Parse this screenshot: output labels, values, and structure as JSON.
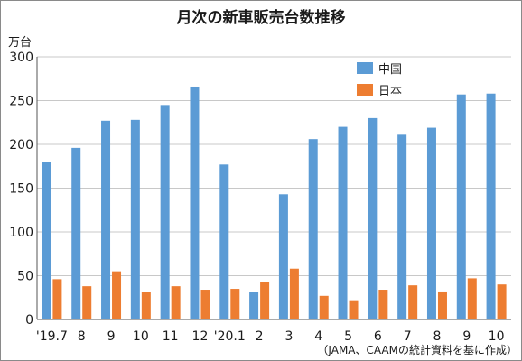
{
  "chart_data": {
    "type": "bar",
    "title": "月次の新車販売台数推移",
    "ylabel": "万台",
    "xlabel": "",
    "source_note": "（JAMA、CAAMの統計資料を基に作成）",
    "categories": [
      "'19.7",
      "8",
      "9",
      "10",
      "11",
      "12",
      "'20.1",
      "2",
      "3",
      "4",
      "5",
      "6",
      "7",
      "8",
      "9",
      "10"
    ],
    "ylim": [
      0,
      300
    ],
    "yticks": [
      0,
      50,
      100,
      150,
      200,
      250,
      300
    ],
    "grid": true,
    "legend_position": "top-right",
    "series": [
      {
        "name": "中国",
        "color": "#5b9bd5",
        "values": [
          180,
          196,
          227,
          228,
          245,
          266,
          177,
          31,
          143,
          206,
          220,
          230,
          211,
          219,
          257,
          258
        ]
      },
      {
        "name": "日本",
        "color": "#ed7d31",
        "values": [
          46,
          38,
          55,
          31,
          38,
          34,
          35,
          43,
          58,
          27,
          22,
          34,
          39,
          32,
          47,
          40
        ]
      }
    ]
  }
}
